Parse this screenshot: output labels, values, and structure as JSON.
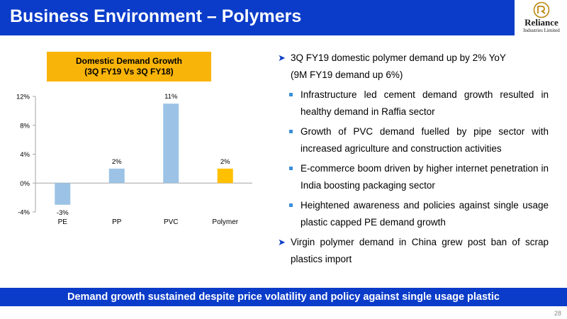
{
  "header": {
    "title": "Business Environment – Polymers"
  },
  "logo": {
    "name": "Reliance",
    "subtitle": "Industries Limited"
  },
  "chart_title": {
    "line1": "Domestic Demand Growth",
    "line2": "(3Q FY19 Vs 3Q FY18)"
  },
  "bullets": {
    "b1_line1": "3Q FY19 domestic polymer demand up by 2% YoY",
    "b1_line2": "(9M FY19 demand up 6%)",
    "sub": [
      "Infrastructure led cement demand growth resulted in healthy demand in Raffia sector",
      "Growth of PVC demand fuelled by pipe sector with increased agriculture and construction activities",
      "E-commerce boom driven by higher internet penetration in India boosting packaging sector",
      "Heightened awareness and policies against single usage plastic capped PE demand growth"
    ],
    "b2": "Virgin polymer demand in China grew post ban of scrap plastics import"
  },
  "footer": {
    "text": "Demand growth sustained despite price volatility and policy against single usage plastic"
  },
  "page_number": "28",
  "colors": {
    "header_blue": "#0b3cc9",
    "bar_blue": "#9cc3e5",
    "bar_highlight": "#ffc000",
    "title_box": "#f9b40a"
  },
  "chart_data": {
    "type": "bar",
    "title": "Domestic Demand Growth (3Q FY19 Vs 3Q FY18)",
    "categories": [
      "PE",
      "PP",
      "PVC",
      "Polymer"
    ],
    "values": [
      -3,
      2,
      11,
      2
    ],
    "data_labels": [
      "-3%",
      "2%",
      "11%",
      "2%"
    ],
    "highlight": "Polymer",
    "ylim": [
      -4,
      12
    ],
    "yticks": [
      -4,
      0,
      4,
      8,
      12
    ],
    "ytick_labels": [
      "-4%",
      "0%",
      "4%",
      "8%",
      "12%"
    ],
    "grid": false,
    "legend": "none",
    "xlabel": "",
    "ylabel": ""
  }
}
